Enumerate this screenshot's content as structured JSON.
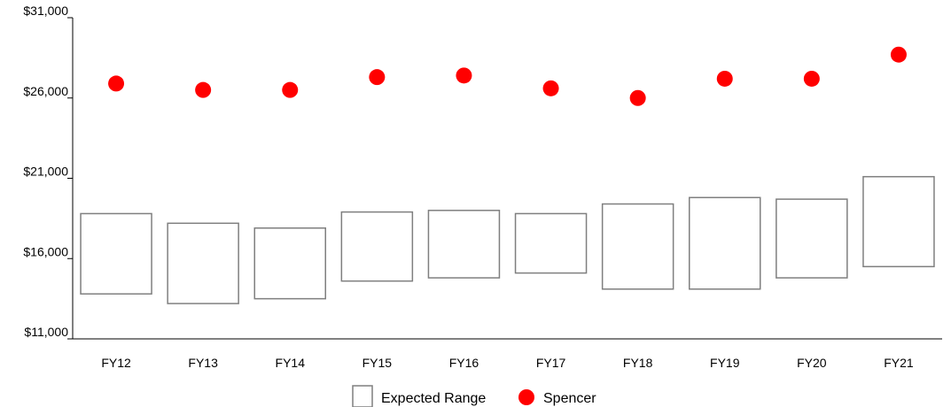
{
  "chart_data": {
    "type": "box-range-with-points",
    "title": "",
    "xlabel": "",
    "ylabel": "",
    "categories": [
      "FY12",
      "FY13",
      "FY14",
      "FY15",
      "FY16",
      "FY17",
      "FY18",
      "FY19",
      "FY20",
      "FY21"
    ],
    "ylim": [
      11000,
      31000
    ],
    "y_ticks": [
      11000,
      16000,
      21000,
      26000,
      31000
    ],
    "y_tick_labels": [
      "$11,000",
      "$16,000",
      "$21,000",
      "$26,000",
      "$31,000"
    ],
    "series": [
      {
        "name": "Expected Range",
        "type": "range",
        "low": [
          13800,
          13200,
          13500,
          14600,
          14800,
          15100,
          14100,
          14100,
          14800,
          15500
        ],
        "high": [
          18800,
          18200,
          17900,
          18900,
          19000,
          18800,
          19400,
          19800,
          19700,
          21100
        ],
        "stroke_color": "#7f7f7f"
      },
      {
        "name": "Spencer",
        "type": "scatter",
        "values": [
          26900,
          26500,
          26500,
          27300,
          27400,
          26600,
          26000,
          27200,
          27200,
          28700
        ],
        "color": "#ff0000"
      }
    ],
    "grid": false,
    "legend_position": "bottom-center"
  }
}
